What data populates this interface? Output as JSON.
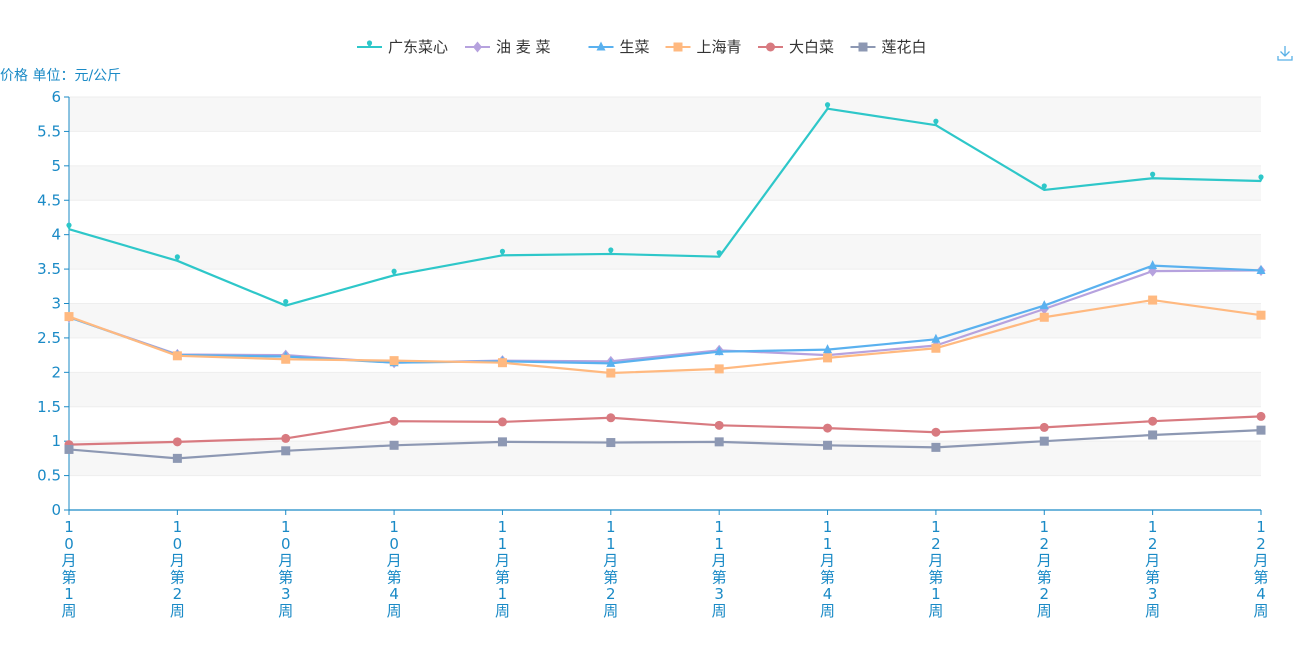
{
  "chart_data": {
    "type": "line",
    "ylabel": "价格 单位：元/公斤",
    "ylim": [
      0,
      6
    ],
    "yticks": [
      "0",
      "0.5",
      "1",
      "1.5",
      "2",
      "2.5",
      "3",
      "3.5",
      "4",
      "4.5",
      "5",
      "5.5",
      "6"
    ],
    "categories": [
      "10月第1周",
      "10月第2周",
      "10月第3周",
      "10月第4周",
      "11月第1周",
      "11月第2周",
      "11月第3周",
      "11月第4周",
      "12月第1周",
      "12月第2周",
      "12月第3周",
      "12月第4周"
    ],
    "legend_position": "top-center",
    "grid": true,
    "series": [
      {
        "name": "广东菜心",
        "color": "#2ec7c9",
        "marker": "pin",
        "values": [
          4.08,
          3.62,
          2.97,
          3.41,
          3.7,
          3.72,
          3.68,
          5.83,
          5.59,
          4.65,
          4.82,
          4.78
        ]
      },
      {
        "name": "油 麦 菜",
        "color": "#b6a2de",
        "marker": "diamond",
        "values": [
          2.8,
          2.26,
          2.25,
          2.14,
          2.17,
          2.16,
          2.32,
          2.25,
          2.39,
          2.92,
          3.47,
          3.48
        ]
      },
      {
        "name": "生菜",
        "color": "#5ab1ef",
        "marker": "triangle",
        "values": [
          2.8,
          2.25,
          2.23,
          2.14,
          2.16,
          2.13,
          2.3,
          2.33,
          2.48,
          2.97,
          3.55,
          3.48
        ]
      },
      {
        "name": "上海青",
        "color": "#ffb980",
        "marker": "square",
        "values": [
          2.81,
          2.24,
          2.19,
          2.17,
          2.14,
          1.99,
          2.05,
          2.21,
          2.35,
          2.8,
          3.05,
          2.83
        ]
      },
      {
        "name": "大白菜",
        "color": "#d87a80",
        "marker": "circle",
        "values": [
          0.95,
          0.99,
          1.04,
          1.29,
          1.28,
          1.34,
          1.23,
          1.19,
          1.13,
          1.2,
          1.29,
          1.36
        ]
      },
      {
        "name": "莲花白",
        "color": "#8d98b3",
        "marker": "square",
        "values": [
          0.88,
          0.75,
          0.86,
          0.94,
          0.99,
          0.98,
          0.99,
          0.94,
          0.91,
          1.0,
          1.09,
          1.16
        ]
      }
    ]
  },
  "toolbar": {
    "download_icon": "download-icon"
  }
}
